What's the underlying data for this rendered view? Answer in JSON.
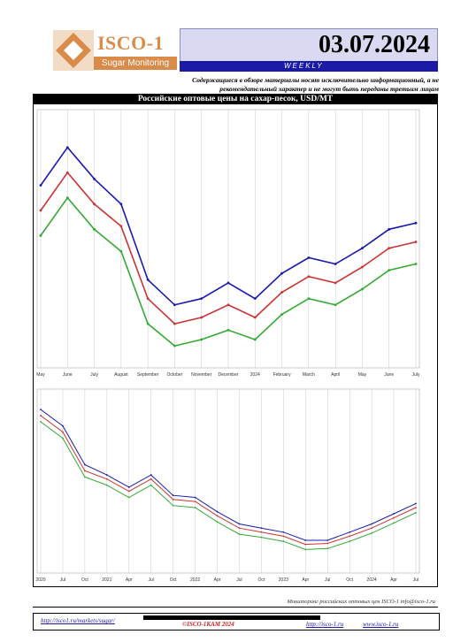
{
  "header": {
    "logo_name": "ISCO-1",
    "logo_tagline": "Sugar Monitoring",
    "date": "03.07.2024",
    "frequency": "WEEKLY",
    "disclaimer": "Содержащиеся в обзоре материалы носят исключительно информационный, а не рекомендательный характер и не могут быть переданы третьим лицам"
  },
  "chart_section": {
    "title": "Российские оптовые цены на сахар-песок, USD/MT"
  },
  "colors": {
    "accent": "#d98c4a",
    "header_blue": "#1a1aa6",
    "high": "#1a1ab0",
    "mid": "#cc3333",
    "low": "#33aa33"
  },
  "chart_data": [
    {
      "type": "line",
      "x": [
        "May",
        "June",
        "July",
        "August",
        "September",
        "October",
        "November",
        "December",
        "2024",
        "February",
        "March",
        "April",
        "May",
        "June",
        "July"
      ],
      "series": [
        {
          "values": [
            830,
            890,
            840,
            800,
            680,
            640,
            650,
            675,
            650,
            690,
            715,
            705,
            730,
            760,
            770
          ]
        },
        {
          "values": [
            790,
            850,
            800,
            765,
            650,
            610,
            620,
            640,
            620,
            660,
            685,
            675,
            700,
            730,
            740
          ]
        },
        {
          "values": [
            750,
            810,
            760,
            725,
            610,
            575,
            585,
            600,
            585,
            625,
            650,
            640,
            665,
            695,
            705
          ]
        }
      ],
      "ylim": [
        540,
        950
      ]
    },
    {
      "type": "line",
      "x": [
        "2020",
        "Jul",
        "Oct",
        "2021",
        "Apr",
        "Jul",
        "Oct",
        "2022",
        "Apr",
        "Jul",
        "Oct",
        "2023",
        "Apr",
        "Jul",
        "Oct",
        "2024",
        "Apr",
        "Jul"
      ],
      "series": [
        {
          "values": [
            1200,
            1120,
            930,
            880,
            820,
            880,
            780,
            770,
            700,
            640,
            620,
            600,
            560,
            560,
            600,
            640,
            690,
            740
          ]
        },
        {
          "values": [
            1170,
            1090,
            900,
            860,
            800,
            860,
            760,
            750,
            680,
            620,
            600,
            580,
            540,
            545,
            580,
            620,
            670,
            720
          ]
        },
        {
          "values": [
            1140,
            1060,
            870,
            830,
            770,
            830,
            730,
            720,
            650,
            590,
            575,
            555,
            515,
            520,
            555,
            595,
            645,
            695
          ]
        }
      ],
      "ylim": [
        400,
        1300
      ]
    }
  ],
  "footer": {
    "note": "Мониторинг российских оптовых цен ISCO-1 info@isco-1.ru",
    "url1": "http://isco1.ru/markets/sugar/",
    "copyright": "©ISCO-1КАМ 2024",
    "url2": "http://isco-1.ru",
    "url3": "www.isco-1.ru"
  }
}
